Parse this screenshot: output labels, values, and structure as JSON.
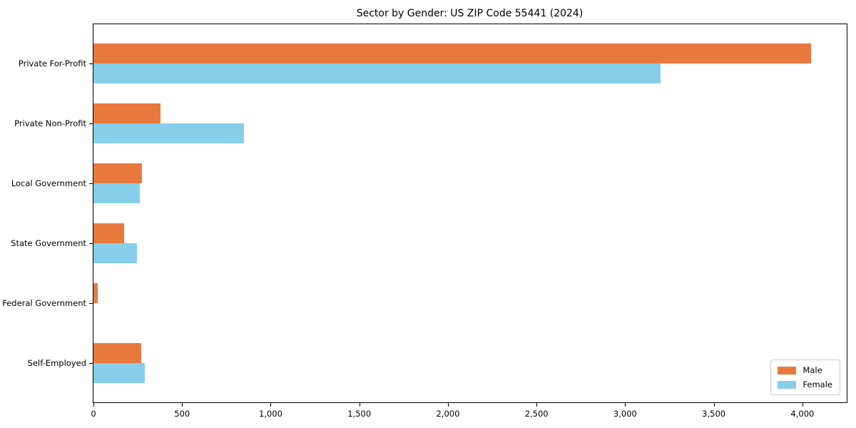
{
  "chart_data": {
    "type": "bar",
    "orientation": "horizontal",
    "title": "Sector by Gender: US ZIP Code 55441 (2024)",
    "categories": [
      "Private For-Profit",
      "Private Non-Profit",
      "Local Government",
      "State Government",
      "Federal Government",
      "Self-Employed"
    ],
    "series": [
      {
        "name": "Male",
        "color": "#e8793d",
        "values": [
          4050,
          380,
          275,
          175,
          25,
          270
        ]
      },
      {
        "name": "Female",
        "color": "#87ceeb",
        "values": [
          3200,
          850,
          260,
          245,
          0,
          290
        ]
      }
    ],
    "xlabel": "",
    "ylabel": "",
    "xlim": [
      0,
      4250
    ],
    "x_ticks": [
      0,
      500,
      1000,
      1500,
      2000,
      2500,
      3000,
      3500,
      4000
    ],
    "x_tick_labels": [
      "0",
      "500",
      "1,000",
      "1,500",
      "2,000",
      "2,500",
      "3,000",
      "3,500",
      "4,000"
    ],
    "grid": false,
    "legend": {
      "position": "lower right"
    }
  }
}
